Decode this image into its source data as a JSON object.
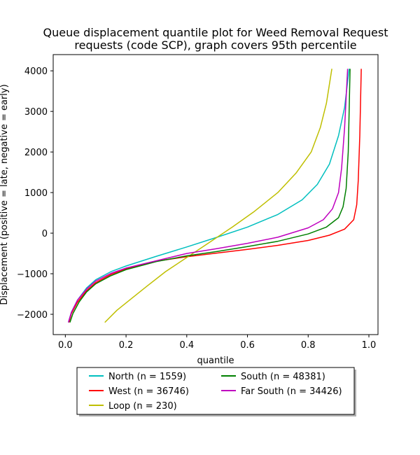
{
  "chart_data": {
    "type": "line",
    "title_lines": [
      "Queue displacement quantile plot for Weed Removal Request",
      "requests (code SCP), graph covers 95th percentile"
    ],
    "xlabel": "quantile",
    "ylabel": "Displacement (positive = late, negative = early)",
    "xlim": [
      -0.04,
      1.03
    ],
    "ylim": [
      -2500,
      4400
    ],
    "xticks": [
      0.0,
      0.2,
      0.4,
      0.6,
      0.8,
      1.0
    ],
    "xtick_labels": [
      "0.0",
      "0.2",
      "0.4",
      "0.6",
      "0.8",
      "1.0"
    ],
    "yticks": [
      -2000,
      -1000,
      0,
      1000,
      2000,
      3000,
      4000
    ],
    "ytick_labels": [
      "−2000",
      "−1000",
      "0",
      "1000",
      "2000",
      "3000",
      "4000"
    ],
    "grid": false,
    "legend_position": "bottom-center",
    "series": [
      {
        "name": "North (n = 1559)",
        "color": "#00bfbf",
        "x": [
          0.01,
          0.02,
          0.04,
          0.07,
          0.1,
          0.15,
          0.2,
          0.3,
          0.4,
          0.5,
          0.6,
          0.7,
          0.78,
          0.83,
          0.87,
          0.9,
          0.92,
          0.935
        ],
        "y": [
          -2200,
          -1950,
          -1650,
          -1350,
          -1150,
          -950,
          -810,
          -570,
          -340,
          -100,
          150,
          460,
          820,
          1200,
          1700,
          2400,
          3100,
          4050
        ]
      },
      {
        "name": "West (n = 36746)",
        "color": "#ff0000",
        "x": [
          0.012,
          0.02,
          0.04,
          0.07,
          0.1,
          0.15,
          0.2,
          0.3,
          0.4,
          0.5,
          0.6,
          0.7,
          0.8,
          0.87,
          0.92,
          0.95,
          0.96,
          0.965,
          0.97,
          0.975
        ],
        "y": [
          -2200,
          -1980,
          -1700,
          -1420,
          -1220,
          -1020,
          -880,
          -690,
          -580,
          -490,
          -400,
          -300,
          -180,
          -50,
          100,
          330,
          700,
          1300,
          2400,
          4050
        ]
      },
      {
        "name": "Loop (n = 230)",
        "color": "#bfbf00",
        "x": [
          0.13,
          0.17,
          0.22,
          0.27,
          0.33,
          0.4,
          0.47,
          0.55,
          0.62,
          0.7,
          0.76,
          0.81,
          0.84,
          0.86,
          0.878
        ],
        "y": [
          -2200,
          -1900,
          -1600,
          -1300,
          -950,
          -600,
          -250,
          150,
          520,
          1000,
          1480,
          2000,
          2600,
          3200,
          4050
        ]
      },
      {
        "name": "South (n = 48381)",
        "color": "#008000",
        "x": [
          0.015,
          0.025,
          0.045,
          0.07,
          0.1,
          0.15,
          0.2,
          0.3,
          0.4,
          0.5,
          0.6,
          0.7,
          0.8,
          0.86,
          0.9,
          0.915,
          0.925,
          0.932,
          0.938
        ],
        "y": [
          -2200,
          -1980,
          -1700,
          -1450,
          -1250,
          -1050,
          -900,
          -700,
          -560,
          -450,
          -330,
          -200,
          -20,
          150,
          380,
          650,
          1100,
          2000,
          4050
        ]
      },
      {
        "name": "Far South (n = 34426)",
        "color": "#bf00bf",
        "x": [
          0.01,
          0.02,
          0.04,
          0.07,
          0.1,
          0.15,
          0.2,
          0.3,
          0.4,
          0.5,
          0.6,
          0.7,
          0.8,
          0.85,
          0.88,
          0.9,
          0.91,
          0.92,
          0.93
        ],
        "y": [
          -2200,
          -1950,
          -1650,
          -1380,
          -1180,
          -990,
          -860,
          -680,
          -500,
          -380,
          -250,
          -100,
          130,
          330,
          600,
          1000,
          1600,
          2600,
          4050
        ]
      }
    ]
  }
}
